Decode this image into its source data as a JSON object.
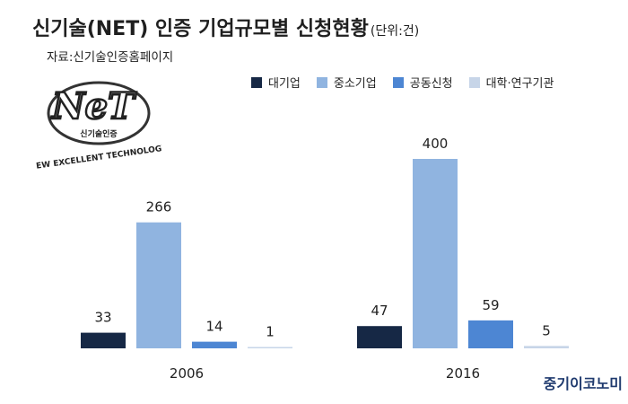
{
  "header": {
    "title": "신기술(NET) 인증 기업규모별 신청현황",
    "unit": "(단위:건)",
    "source": "자료:신기술인증홈페이지"
  },
  "logo": {
    "mark": "NeT",
    "kor_text": "신기술인증",
    "tagline": "NEW EXCELLENT TECHNOLOGY"
  },
  "brand": "중기이코노미",
  "colors": {
    "대기업": "#162845",
    "중소기업": "#90b4e0",
    "공동신청": "#4d86d3",
    "대학·연구기관": "#c7d5e8"
  },
  "chart_data": {
    "type": "bar",
    "categories": [
      "2006",
      "2016"
    ],
    "series": [
      {
        "name": "대기업",
        "values": [
          33,
          47
        ]
      },
      {
        "name": "중소기업",
        "values": [
          266,
          400
        ]
      },
      {
        "name": "공동신청",
        "values": [
          14,
          59
        ]
      },
      {
        "name": "대학·연구기관",
        "values": [
          1,
          5
        ]
      }
    ],
    "ylim": [
      0,
      400
    ],
    "grid": false,
    "legend": "top-right",
    "data_labels": true
  }
}
